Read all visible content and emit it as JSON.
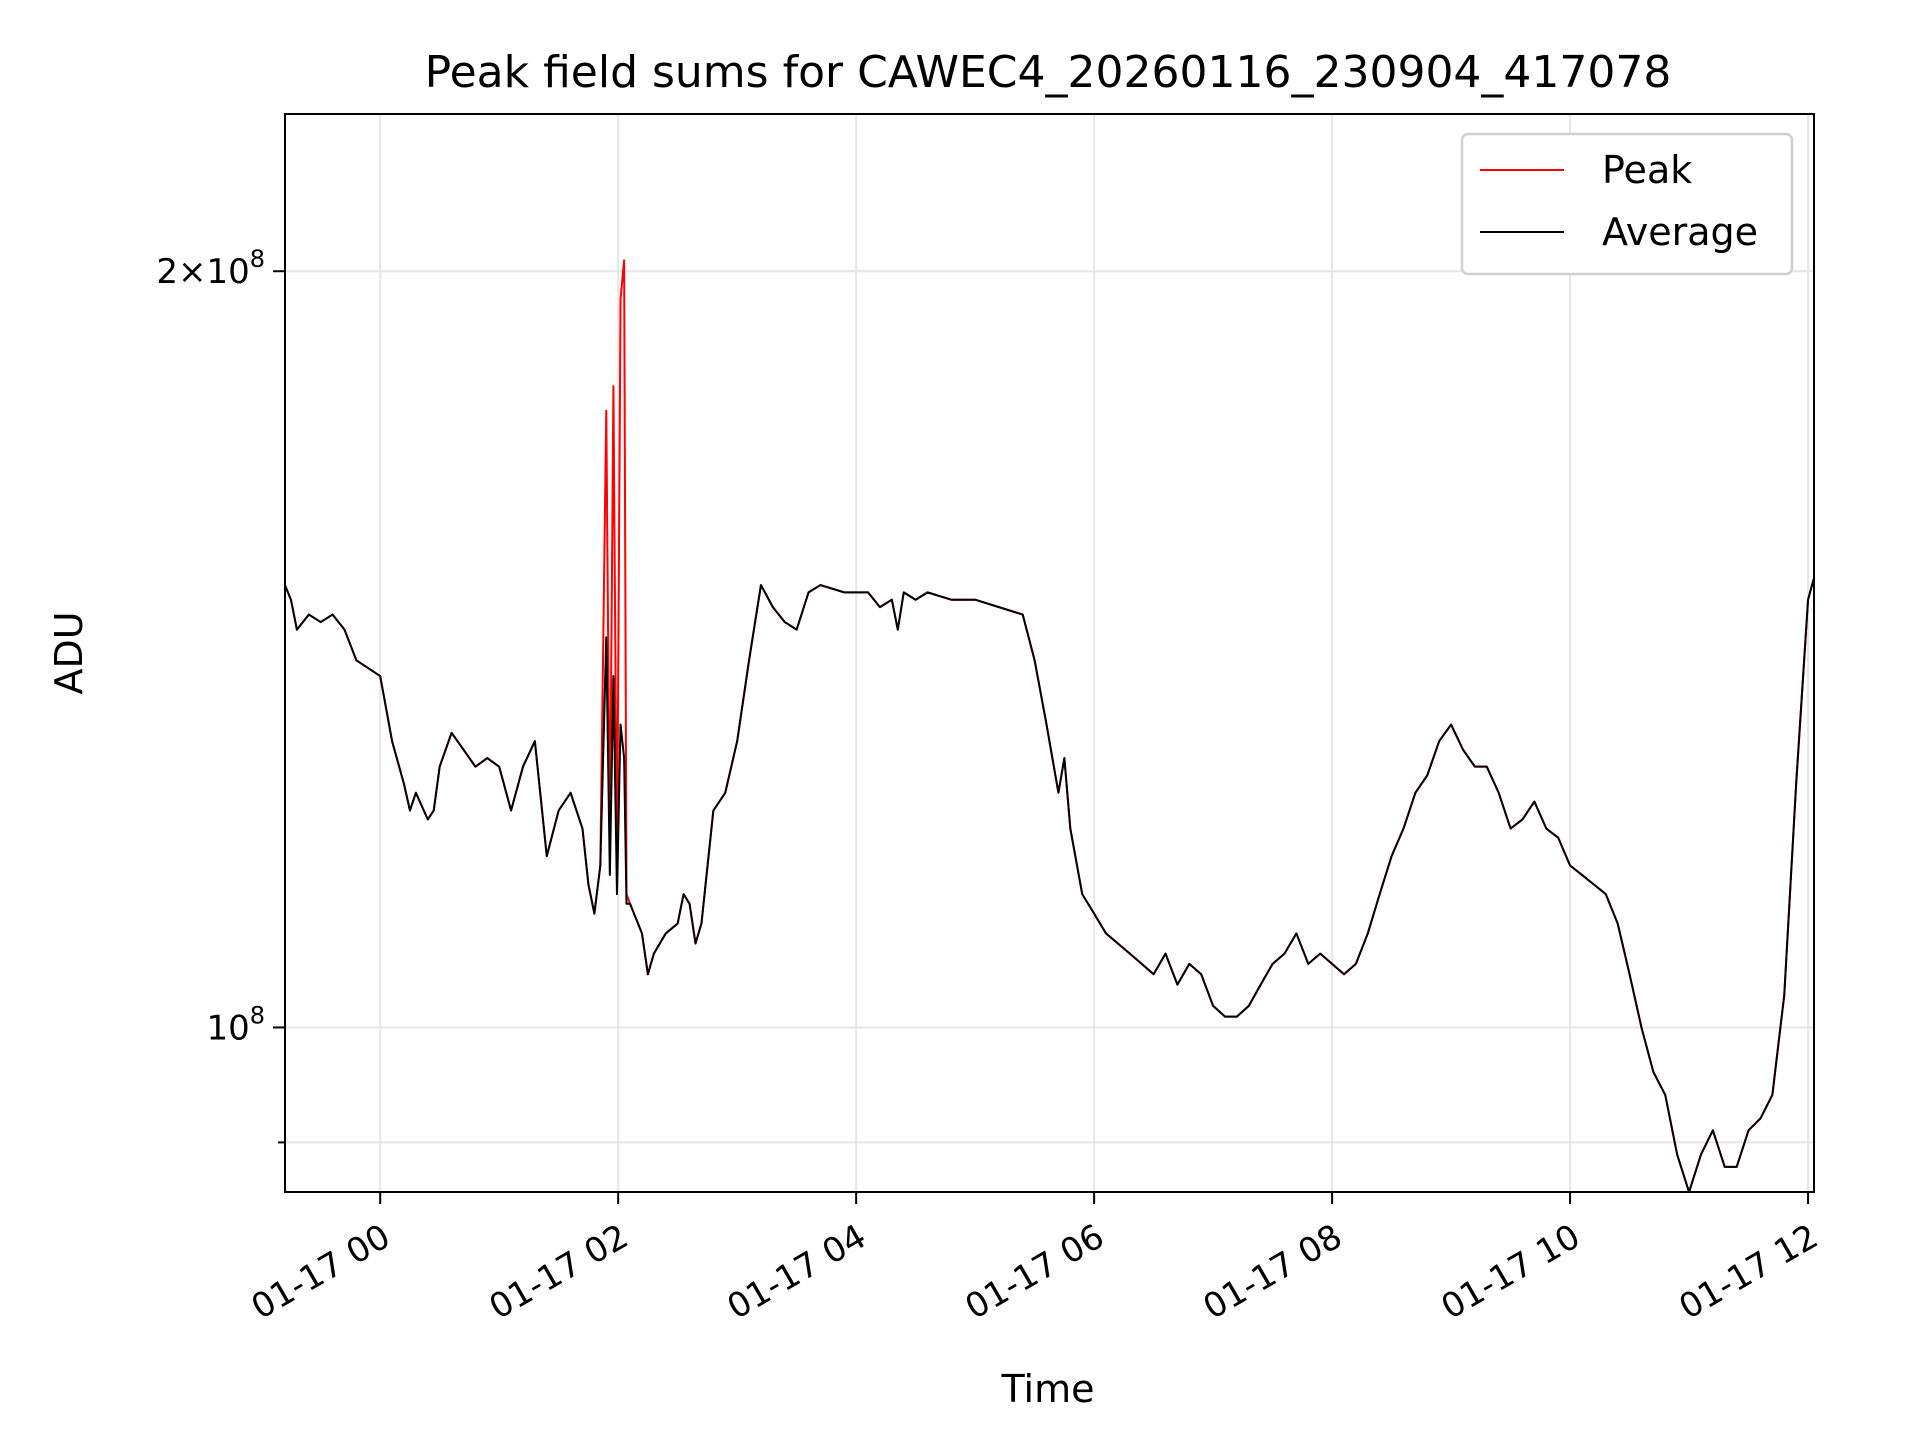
{
  "chart_data": {
    "type": "line",
    "title": "Peak field sums for CAWEC4_20260116_230904_417078",
    "xlabel": "Time",
    "ylabel": "ADU",
    "x_unit": "hours",
    "xlim": [
      -0.8,
      12.05
    ],
    "ylim": [
      86000000,
      231000000
    ],
    "yscale": "log",
    "grid": true,
    "legend_position": "upper right",
    "x_ticks": [
      {
        "value": 0,
        "label": "01-17 00"
      },
      {
        "value": 2,
        "label": "01-17 02"
      },
      {
        "value": 4,
        "label": "01-17 04"
      },
      {
        "value": 6,
        "label": "01-17 06"
      },
      {
        "value": 8,
        "label": "01-17 08"
      },
      {
        "value": 10,
        "label": "01-17 10"
      },
      {
        "value": 12,
        "label": "01-17 12"
      }
    ],
    "y_ticks": [
      {
        "value": 100000000,
        "base": "10",
        "exp": "8",
        "prefix": ""
      },
      {
        "value": 200000000,
        "base": "10",
        "exp": "8",
        "prefix": "2×"
      }
    ],
    "y_minor_ticks": [
      90000000
    ],
    "series": [
      {
        "name": "Peak",
        "color": "#ff0000",
        "points": [
          [
            -0.8,
            150
          ],
          [
            -0.75,
            148
          ],
          [
            -0.7,
            144
          ],
          [
            -0.6,
            146
          ],
          [
            -0.5,
            145
          ],
          [
            -0.4,
            146
          ],
          [
            -0.3,
            144
          ],
          [
            -0.2,
            140
          ],
          [
            -0.1,
            139
          ],
          [
            0.0,
            138
          ],
          [
            0.1,
            130
          ],
          [
            0.2,
            125
          ],
          [
            0.25,
            122
          ],
          [
            0.3,
            124
          ],
          [
            0.4,
            121
          ],
          [
            0.45,
            122
          ],
          [
            0.5,
            127
          ],
          [
            0.6,
            131
          ],
          [
            0.7,
            129
          ],
          [
            0.8,
            127
          ],
          [
            0.9,
            128
          ],
          [
            1.0,
            127
          ],
          [
            1.1,
            122
          ],
          [
            1.2,
            127
          ],
          [
            1.3,
            130
          ],
          [
            1.4,
            117
          ],
          [
            1.5,
            122
          ],
          [
            1.6,
            124
          ],
          [
            1.7,
            120
          ],
          [
            1.75,
            114
          ],
          [
            1.8,
            111
          ],
          [
            1.85,
            116
          ],
          [
            1.9,
            176
          ],
          [
            1.93,
            118
          ],
          [
            1.96,
            180
          ],
          [
            1.99,
            115
          ],
          [
            2.02,
            195
          ],
          [
            2.05,
            202
          ],
          [
            2.07,
            113
          ],
          [
            2.1,
            112
          ],
          [
            2.2,
            109
          ],
          [
            2.25,
            105
          ],
          [
            2.3,
            107
          ],
          [
            2.4,
            109
          ],
          [
            2.5,
            110
          ],
          [
            2.55,
            113
          ],
          [
            2.6,
            112
          ],
          [
            2.65,
            108
          ],
          [
            2.7,
            110
          ],
          [
            2.8,
            122
          ],
          [
            2.9,
            124
          ],
          [
            3.0,
            130
          ],
          [
            3.1,
            140
          ],
          [
            3.2,
            150
          ],
          [
            3.3,
            147
          ],
          [
            3.4,
            145
          ],
          [
            3.5,
            144
          ],
          [
            3.6,
            149
          ],
          [
            3.7,
            150
          ],
          [
            3.9,
            149
          ],
          [
            4.1,
            149
          ],
          [
            4.2,
            147
          ],
          [
            4.3,
            148
          ],
          [
            4.35,
            144
          ],
          [
            4.4,
            149
          ],
          [
            4.5,
            148
          ],
          [
            4.6,
            149
          ],
          [
            4.8,
            148
          ],
          [
            5.0,
            148
          ],
          [
            5.2,
            147
          ],
          [
            5.4,
            146
          ],
          [
            5.5,
            140
          ],
          [
            5.6,
            132
          ],
          [
            5.7,
            124
          ],
          [
            5.75,
            128
          ],
          [
            5.8,
            120
          ],
          [
            5.9,
            113
          ],
          [
            6.0,
            111
          ],
          [
            6.1,
            109
          ],
          [
            6.2,
            108
          ],
          [
            6.3,
            107
          ],
          [
            6.4,
            106
          ],
          [
            6.5,
            105
          ],
          [
            6.6,
            107
          ],
          [
            6.7,
            104
          ],
          [
            6.8,
            106
          ],
          [
            6.9,
            105
          ],
          [
            7.0,
            102
          ],
          [
            7.1,
            101
          ],
          [
            7.2,
            101
          ],
          [
            7.3,
            102
          ],
          [
            7.4,
            104
          ],
          [
            7.5,
            106
          ],
          [
            7.6,
            107
          ],
          [
            7.7,
            109
          ],
          [
            7.8,
            106
          ],
          [
            7.9,
            107
          ],
          [
            8.0,
            106
          ],
          [
            8.1,
            105
          ],
          [
            8.2,
            106
          ],
          [
            8.3,
            109
          ],
          [
            8.4,
            113
          ],
          [
            8.5,
            117
          ],
          [
            8.6,
            120
          ],
          [
            8.7,
            124
          ],
          [
            8.8,
            126
          ],
          [
            8.9,
            130
          ],
          [
            9.0,
            132
          ],
          [
            9.1,
            129
          ],
          [
            9.2,
            127
          ],
          [
            9.3,
            127
          ],
          [
            9.4,
            124
          ],
          [
            9.5,
            120
          ],
          [
            9.6,
            121
          ],
          [
            9.7,
            123
          ],
          [
            9.8,
            120
          ],
          [
            9.9,
            119
          ],
          [
            10.0,
            116
          ],
          [
            10.1,
            115
          ],
          [
            10.2,
            114
          ],
          [
            10.3,
            113
          ],
          [
            10.4,
            110
          ],
          [
            10.5,
            105
          ],
          [
            10.6,
            100
          ],
          [
            10.7,
            96
          ],
          [
            10.8,
            94
          ],
          [
            10.9,
            89
          ],
          [
            11.0,
            86
          ],
          [
            11.1,
            89
          ],
          [
            11.2,
            91
          ],
          [
            11.3,
            88
          ],
          [
            11.4,
            88
          ],
          [
            11.5,
            91
          ],
          [
            11.6,
            92
          ],
          [
            11.7,
            94
          ],
          [
            11.8,
            103
          ],
          [
            11.9,
            125
          ],
          [
            12.0,
            148
          ],
          [
            12.05,
            151
          ]
        ]
      },
      {
        "name": "Average",
        "color": "#000000",
        "points": [
          [
            -0.8,
            150
          ],
          [
            -0.75,
            148
          ],
          [
            -0.7,
            144
          ],
          [
            -0.6,
            146
          ],
          [
            -0.5,
            145
          ],
          [
            -0.4,
            146
          ],
          [
            -0.3,
            144
          ],
          [
            -0.2,
            140
          ],
          [
            -0.1,
            139
          ],
          [
            0.0,
            138
          ],
          [
            0.1,
            130
          ],
          [
            0.2,
            125
          ],
          [
            0.25,
            122
          ],
          [
            0.3,
            124
          ],
          [
            0.4,
            121
          ],
          [
            0.45,
            122
          ],
          [
            0.5,
            127
          ],
          [
            0.6,
            131
          ],
          [
            0.7,
            129
          ],
          [
            0.8,
            127
          ],
          [
            0.9,
            128
          ],
          [
            1.0,
            127
          ],
          [
            1.1,
            122
          ],
          [
            1.2,
            127
          ],
          [
            1.3,
            130
          ],
          [
            1.4,
            117
          ],
          [
            1.5,
            122
          ],
          [
            1.6,
            124
          ],
          [
            1.7,
            120
          ],
          [
            1.75,
            114
          ],
          [
            1.8,
            111
          ],
          [
            1.85,
            116
          ],
          [
            1.9,
            143
          ],
          [
            1.93,
            115
          ],
          [
            1.96,
            138
          ],
          [
            1.99,
            113
          ],
          [
            2.02,
            132
          ],
          [
            2.05,
            128
          ],
          [
            2.07,
            112
          ],
          [
            2.1,
            112
          ],
          [
            2.2,
            109
          ],
          [
            2.25,
            105
          ],
          [
            2.3,
            107
          ],
          [
            2.4,
            109
          ],
          [
            2.5,
            110
          ],
          [
            2.55,
            113
          ],
          [
            2.6,
            112
          ],
          [
            2.65,
            108
          ],
          [
            2.7,
            110
          ],
          [
            2.8,
            122
          ],
          [
            2.9,
            124
          ],
          [
            3.0,
            130
          ],
          [
            3.1,
            140
          ],
          [
            3.2,
            150
          ],
          [
            3.3,
            147
          ],
          [
            3.4,
            145
          ],
          [
            3.5,
            144
          ],
          [
            3.6,
            149
          ],
          [
            3.7,
            150
          ],
          [
            3.9,
            149
          ],
          [
            4.1,
            149
          ],
          [
            4.2,
            147
          ],
          [
            4.3,
            148
          ],
          [
            4.35,
            144
          ],
          [
            4.4,
            149
          ],
          [
            4.5,
            148
          ],
          [
            4.6,
            149
          ],
          [
            4.8,
            148
          ],
          [
            5.0,
            148
          ],
          [
            5.2,
            147
          ],
          [
            5.4,
            146
          ],
          [
            5.5,
            140
          ],
          [
            5.6,
            132
          ],
          [
            5.7,
            124
          ],
          [
            5.75,
            128
          ],
          [
            5.8,
            120
          ],
          [
            5.9,
            113
          ],
          [
            6.0,
            111
          ],
          [
            6.1,
            109
          ],
          [
            6.2,
            108
          ],
          [
            6.3,
            107
          ],
          [
            6.4,
            106
          ],
          [
            6.5,
            105
          ],
          [
            6.6,
            107
          ],
          [
            6.7,
            104
          ],
          [
            6.8,
            106
          ],
          [
            6.9,
            105
          ],
          [
            7.0,
            102
          ],
          [
            7.1,
            101
          ],
          [
            7.2,
            101
          ],
          [
            7.3,
            102
          ],
          [
            7.4,
            104
          ],
          [
            7.5,
            106
          ],
          [
            7.6,
            107
          ],
          [
            7.7,
            109
          ],
          [
            7.8,
            106
          ],
          [
            7.9,
            107
          ],
          [
            8.0,
            106
          ],
          [
            8.1,
            105
          ],
          [
            8.2,
            106
          ],
          [
            8.3,
            109
          ],
          [
            8.4,
            113
          ],
          [
            8.5,
            117
          ],
          [
            8.6,
            120
          ],
          [
            8.7,
            124
          ],
          [
            8.8,
            126
          ],
          [
            8.9,
            130
          ],
          [
            9.0,
            132
          ],
          [
            9.1,
            129
          ],
          [
            9.2,
            127
          ],
          [
            9.3,
            127
          ],
          [
            9.4,
            124
          ],
          [
            9.5,
            120
          ],
          [
            9.6,
            121
          ],
          [
            9.7,
            123
          ],
          [
            9.8,
            120
          ],
          [
            9.9,
            119
          ],
          [
            10.0,
            116
          ],
          [
            10.1,
            115
          ],
          [
            10.2,
            114
          ],
          [
            10.3,
            113
          ],
          [
            10.4,
            110
          ],
          [
            10.5,
            105
          ],
          [
            10.6,
            100
          ],
          [
            10.7,
            96
          ],
          [
            10.8,
            94
          ],
          [
            10.9,
            89
          ],
          [
            11.0,
            86
          ],
          [
            11.1,
            89
          ],
          [
            11.2,
            91
          ],
          [
            11.3,
            88
          ],
          [
            11.4,
            88
          ],
          [
            11.5,
            91
          ],
          [
            11.6,
            92
          ],
          [
            11.7,
            94
          ],
          [
            11.8,
            103
          ],
          [
            11.9,
            125
          ],
          [
            12.0,
            148
          ],
          [
            12.05,
            151
          ]
        ]
      }
    ],
    "y_points_unit": "millions of ADU"
  }
}
